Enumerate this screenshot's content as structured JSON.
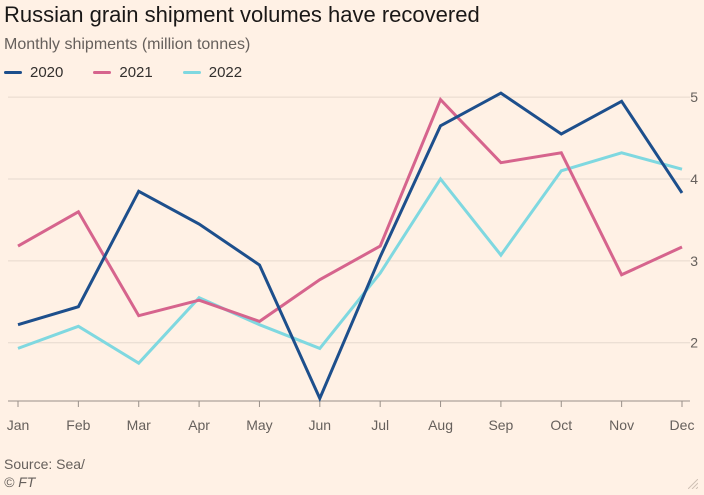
{
  "header": {
    "title": "Russian grain shipment volumes have recovered",
    "subtitle": "Monthly shipments (million tonnes)"
  },
  "footer": {
    "source": "Source: Sea/",
    "copyright": "© FT"
  },
  "colors": {
    "background": "#fff1e5",
    "grid": "#e6d9ce",
    "axis_text": "#66605c"
  },
  "chart_data": {
    "type": "line",
    "title": "Russian grain shipment volumes have recovered",
    "subtitle": "Monthly shipments (million tonnes)",
    "xlabel": "",
    "ylabel": "",
    "categories": [
      "Jan",
      "Feb",
      "Mar",
      "Apr",
      "May",
      "Jun",
      "Jul",
      "Aug",
      "Sep",
      "Oct",
      "Nov",
      "Dec"
    ],
    "ylim": [
      1.3,
      5.1
    ],
    "yticks": [
      2,
      3,
      4,
      5
    ],
    "grid": true,
    "legend_position": "top-left",
    "series": [
      {
        "name": "2020",
        "color": "#1d4f8c",
        "values": [
          2.22,
          2.44,
          3.85,
          3.45,
          2.95,
          1.32,
          3.05,
          4.65,
          5.05,
          4.55,
          4.95,
          3.83
        ]
      },
      {
        "name": "2021",
        "color": "#d6648d",
        "values": [
          3.18,
          3.6,
          2.33,
          2.52,
          2.26,
          2.77,
          3.18,
          4.97,
          4.2,
          4.32,
          2.83,
          3.17
        ]
      },
      {
        "name": "2022",
        "color": "#7fd8e0",
        "values": [
          1.93,
          2.2,
          1.75,
          2.55,
          2.22,
          1.93,
          2.85,
          4.0,
          3.07,
          4.1,
          4.32,
          4.12
        ]
      }
    ]
  }
}
